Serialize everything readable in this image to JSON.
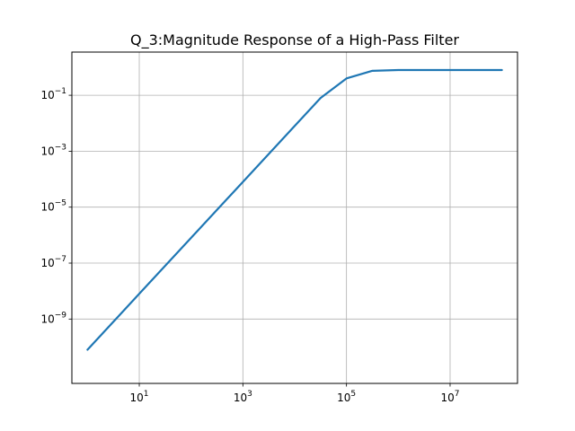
{
  "chart_data": {
    "type": "line",
    "title": "Q_3:Magnitude Response of a High-Pass Filter",
    "xlabel": "",
    "ylabel": "",
    "xscale": "log",
    "yscale": "log",
    "xlim": [
      0.5,
      200000000
    ],
    "ylim": [
      5e-12,
      3.5
    ],
    "grid": true,
    "colors": {
      "line": "#1f77b4",
      "grid": "#b0b0b0",
      "axes": "#000000"
    },
    "x_ticks": [
      {
        "value": 10,
        "base": "10",
        "exp": "1"
      },
      {
        "value": 1000,
        "base": "10",
        "exp": "3"
      },
      {
        "value": 100000,
        "base": "10",
        "exp": "5"
      },
      {
        "value": 10000000,
        "base": "10",
        "exp": "7"
      }
    ],
    "y_ticks": [
      {
        "value": 1e-09,
        "base": "10",
        "exp": "−9"
      },
      {
        "value": 1e-07,
        "base": "10",
        "exp": "−7"
      },
      {
        "value": 1e-05,
        "base": "10",
        "exp": "−5"
      },
      {
        "value": 0.001,
        "base": "10",
        "exp": "−3"
      },
      {
        "value": 0.1,
        "base": "10",
        "exp": "−1"
      }
    ],
    "series": [
      {
        "x": [
          1,
          10,
          100,
          1000,
          10000,
          31623,
          100000,
          316228,
          1000000,
          10000000,
          100000000
        ],
        "y": [
          8e-11,
          8e-09,
          8e-07,
          8e-05,
          0.008,
          0.08,
          0.4,
          0.75,
          0.8,
          0.8,
          0.8
        ]
      }
    ]
  }
}
